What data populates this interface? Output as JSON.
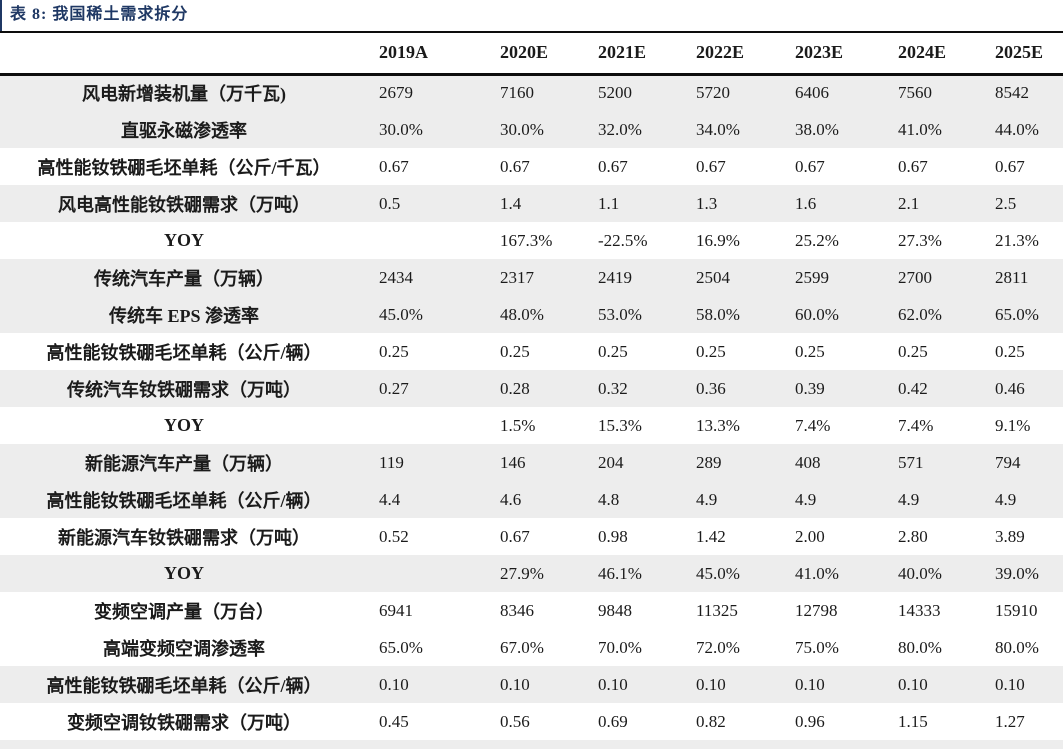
{
  "title": {
    "text": "表 8:  我国稀土需求拆分"
  },
  "colors": {
    "title_navy": "#1f3864",
    "rule_black": "#0d0d0d",
    "row_shade_gray": "#ededed",
    "text": "#1b1b1b"
  },
  "table": {
    "header": {
      "label_column": "",
      "years": [
        "2019A",
        "2020E",
        "2021E",
        "2022E",
        "2023E",
        "2024E",
        "2025E"
      ]
    },
    "rows": [
      {
        "label": "风电新增装机量（万千瓦)",
        "shade": true,
        "values": [
          "2679",
          "7160",
          "5200",
          "5720",
          "6406",
          "7560",
          "8542"
        ]
      },
      {
        "label": "直驱永磁渗透率",
        "shade": true,
        "values": [
          "30.0%",
          "30.0%",
          "32.0%",
          "34.0%",
          "38.0%",
          "41.0%",
          "44.0%"
        ]
      },
      {
        "label": "高性能钕铁硼毛坯单耗（公斤/千瓦）",
        "shade": false,
        "values": [
          "0.67",
          "0.67",
          "0.67",
          "0.67",
          "0.67",
          "0.67",
          "0.67"
        ]
      },
      {
        "label": "风电高性能钕铁硼需求（万吨）",
        "shade": true,
        "values": [
          "0.5",
          "1.4",
          "1.1",
          "1.3",
          "1.6",
          "2.1",
          "2.5"
        ]
      },
      {
        "label": "YOY",
        "shade": false,
        "values": [
          "",
          "167.3%",
          "-22.5%",
          "16.9%",
          "25.2%",
          "27.3%",
          "21.3%"
        ]
      },
      {
        "label": "传统汽车产量（万辆）",
        "shade": true,
        "values": [
          "2434",
          "2317",
          "2419",
          "2504",
          "2599",
          "2700",
          "2811"
        ]
      },
      {
        "label": "传统车 EPS 渗透率",
        "shade": true,
        "values": [
          "45.0%",
          "48.0%",
          "53.0%",
          "58.0%",
          "60.0%",
          "62.0%",
          "65.0%"
        ]
      },
      {
        "label": "高性能钕铁硼毛坯单耗（公斤/辆）",
        "shade": false,
        "values": [
          "0.25",
          "0.25",
          "0.25",
          "0.25",
          "0.25",
          "0.25",
          "0.25"
        ]
      },
      {
        "label": "传统汽车钕铁硼需求（万吨）",
        "shade": true,
        "values": [
          "0.27",
          "0.28",
          "0.32",
          "0.36",
          "0.39",
          "0.42",
          "0.46"
        ]
      },
      {
        "label": "YOY",
        "shade": false,
        "values": [
          "",
          "1.5%",
          "15.3%",
          "13.3%",
          "7.4%",
          "7.4%",
          "9.1%"
        ]
      },
      {
        "label": "新能源汽车产量（万辆）",
        "shade": true,
        "values": [
          "119",
          "146",
          "204",
          "289",
          "408",
          "571",
          "794"
        ]
      },
      {
        "label": "高性能钕铁硼毛坯单耗（公斤/辆）",
        "shade": true,
        "values": [
          "4.4",
          "4.6",
          "4.8",
          "4.9",
          "4.9",
          "4.9",
          "4.9"
        ]
      },
      {
        "label": "新能源汽车钕铁硼需求（万吨）",
        "shade": false,
        "values": [
          "0.52",
          "0.67",
          "0.98",
          "1.42",
          "2.00",
          "2.80",
          "3.89"
        ]
      },
      {
        "label": "YOY",
        "shade": true,
        "values": [
          "",
          "27.9%",
          "46.1%",
          "45.0%",
          "41.0%",
          "40.0%",
          "39.0%"
        ]
      },
      {
        "label": "变频空调产量（万台）",
        "shade": false,
        "values": [
          "6941",
          "8346",
          "9848",
          "11325",
          "12798",
          "14333",
          "15910"
        ]
      },
      {
        "label": "高端变频空调渗透率",
        "shade": false,
        "values": [
          "65.0%",
          "67.0%",
          "70.0%",
          "72.0%",
          "75.0%",
          "80.0%",
          "80.0%"
        ]
      },
      {
        "label": "高性能钕铁硼毛坯单耗（公斤/辆）",
        "shade": true,
        "values": [
          "0.10",
          "0.10",
          "0.10",
          "0.10",
          "0.10",
          "0.10",
          "0.10"
        ]
      },
      {
        "label": "变频空调钕铁硼需求（万吨）",
        "shade": false,
        "values": [
          "0.45",
          "0.56",
          "0.69",
          "0.82",
          "0.96",
          "1.15",
          "1.27"
        ]
      }
    ]
  }
}
